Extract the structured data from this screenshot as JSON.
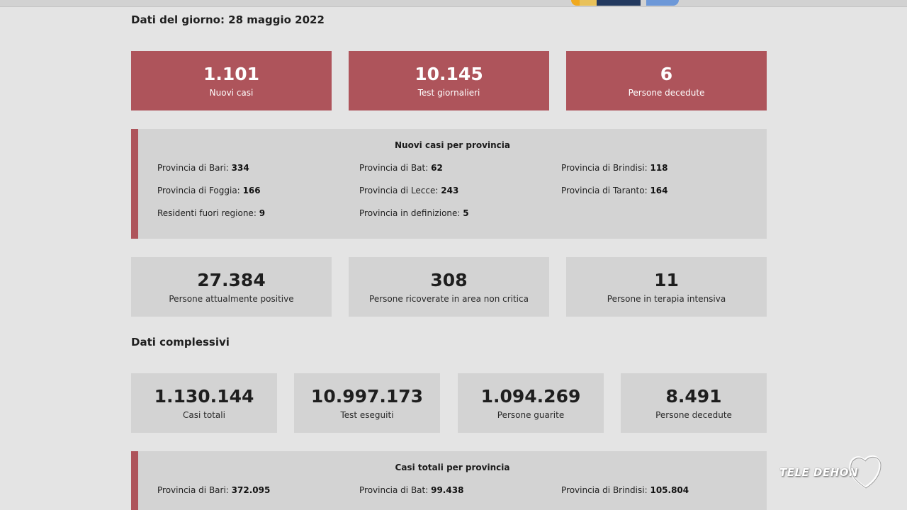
{
  "daily": {
    "title": "Dati del giorno: 28 maggio 2022",
    "cards": [
      {
        "value": "1.101",
        "label": "Nuovi casi"
      },
      {
        "value": "10.145",
        "label": "Test giornalieri"
      },
      {
        "value": "6",
        "label": "Persone decedute"
      }
    ],
    "province_box": {
      "title": "Nuovi casi per provincia",
      "items": [
        {
          "label": "Provincia di Bari:",
          "value": "334"
        },
        {
          "label": "Provincia di Bat:",
          "value": "62"
        },
        {
          "label": "Provincia di Brindisi:",
          "value": "118"
        },
        {
          "label": "Provincia di Foggia:",
          "value": "166"
        },
        {
          "label": "Provincia di Lecce:",
          "value": "243"
        },
        {
          "label": "Provincia di Taranto:",
          "value": "164"
        },
        {
          "label": "Residenti fuori regione:",
          "value": "9"
        },
        {
          "label": "Provincia in definizione:",
          "value": "5"
        }
      ]
    },
    "status_cards": [
      {
        "value": "27.384",
        "label": "Persone attualmente positive"
      },
      {
        "value": "308",
        "label": "Persone ricoverate in area non critica"
      },
      {
        "value": "11",
        "label": "Persone in terapia intensiva"
      }
    ]
  },
  "totals": {
    "title": "Dati complessivi",
    "cards": [
      {
        "value": "1.130.144",
        "label": "Casi totali"
      },
      {
        "value": "10.997.173",
        "label": "Test eseguiti"
      },
      {
        "value": "1.094.269",
        "label": "Persone guarite"
      },
      {
        "value": "8.491",
        "label": "Persone decedute"
      }
    ],
    "province_box": {
      "title": "Casi totali per provincia",
      "items": [
        {
          "label": "Provincia di Bari:",
          "value": "372.095"
        },
        {
          "label": "Provincia di Bat:",
          "value": "99.438"
        },
        {
          "label": "Provincia di Brindisi:",
          "value": "105.804"
        }
      ]
    }
  },
  "watermark": {
    "text": "TELE DEHON"
  },
  "colors": {
    "accent_red": "#ae545b",
    "card_grey": "#d3d3d3",
    "background": "#e4e4e4"
  }
}
